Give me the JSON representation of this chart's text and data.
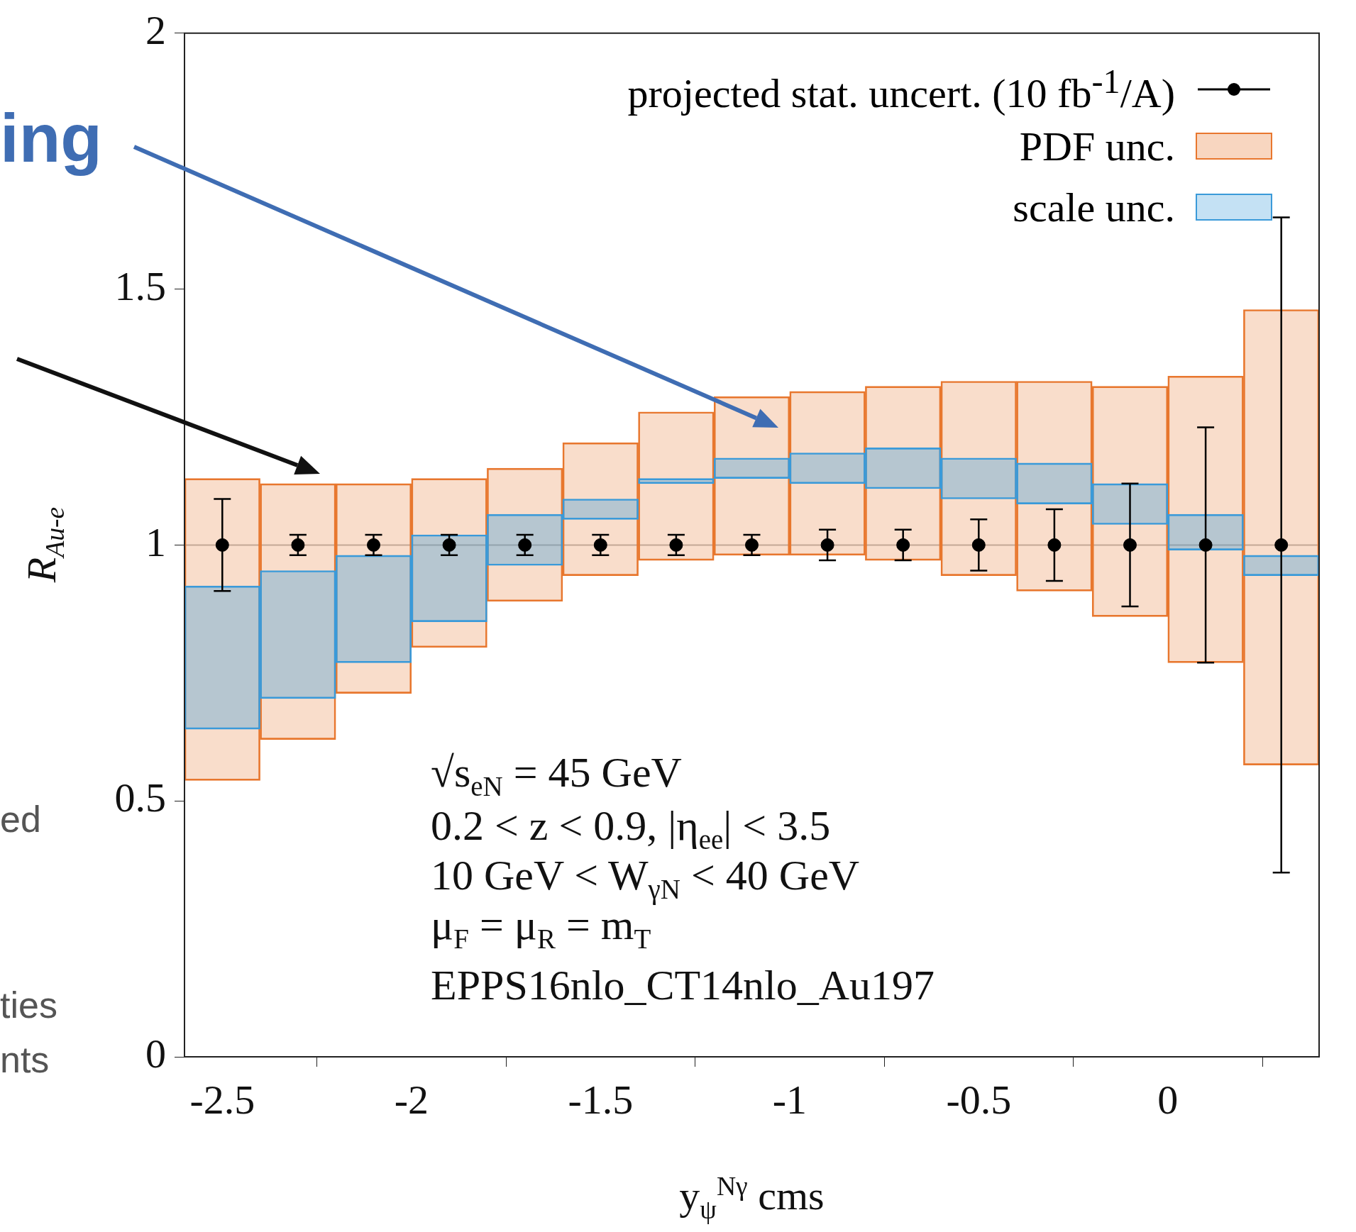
{
  "chart_data": {
    "type": "bar",
    "xlabel": "y$_{ψ}$$^{Nγ}$ cms",
    "ylabel": "R$_{Au-e}$",
    "x": [
      -2.5,
      -2.3,
      -2.1,
      -1.9,
      -1.7,
      -1.5,
      -1.3,
      -1.1,
      -0.9,
      -0.7,
      -0.5,
      -0.3,
      -0.1,
      0.1,
      0.3
    ],
    "xlim": [
      -2.6,
      0.4
    ],
    "ylim": [
      0,
      2
    ],
    "xticks": [
      -2.5,
      -2,
      -1.5,
      -1,
      -0.5,
      0
    ],
    "yticks": [
      0,
      0.5,
      1,
      1.5,
      2
    ],
    "grid": false,
    "legend": "top right",
    "ref_lines": [
      {
        "axis": "y",
        "value": 1,
        "color": "#b8b8b8"
      }
    ],
    "series": [
      {
        "name": "projected stat. uncert. (10 fb$^{-1}$/A)",
        "type": "scatter",
        "color": "#000000",
        "marker": "circle",
        "values": [
          1,
          1,
          1,
          1,
          1,
          1,
          1,
          1,
          1,
          1,
          1,
          1,
          1,
          1,
          1
        ],
        "errors": [
          0.09,
          0.02,
          0.02,
          0.02,
          0.02,
          0.02,
          0.02,
          0.02,
          0.03,
          0.03,
          0.05,
          0.07,
          0.12,
          0.23,
          0.64
        ]
      },
      {
        "name": "PDF unc.",
        "type": "bar",
        "color": "#e8772e",
        "base": [
          0.54,
          0.62,
          0.71,
          0.8,
          0.89,
          0.94,
          0.97,
          0.98,
          0.98,
          0.97,
          0.94,
          0.91,
          0.86,
          0.77,
          0.57
        ],
        "values": [
          0.59,
          0.5,
          0.41,
          0.33,
          0.26,
          0.26,
          0.29,
          0.31,
          0.32,
          0.34,
          0.38,
          0.41,
          0.45,
          0.56,
          0.89
        ]
      },
      {
        "name": "scale unc.",
        "type": "bar",
        "color": "#3a9ad9",
        "base": [
          0.64,
          0.7,
          0.77,
          0.85,
          0.96,
          1.05,
          1.12,
          1.13,
          1.12,
          1.11,
          1.09,
          1.08,
          1.04,
          0.99,
          0.94
        ],
        "values": [
          0.28,
          0.25,
          0.21,
          0.17,
          0.1,
          0.04,
          0.01,
          0.04,
          0.06,
          0.08,
          0.08,
          0.08,
          0.08,
          0.07,
          0.04
        ]
      }
    ],
    "annotations": [
      "√s$_{eN}$ = 45 GeV",
      "0.2 < z < 0.9, |η$_{ee}$| < 3.5",
      "10 GeV < W$_{γN}$ < 40 GeV",
      "μ$_{F}$ = μ$_{R}$ = m$_{T}$",
      "EPPS16nlo_CT14nlo_Au197",
      "ing",
      "ed",
      "ties",
      "nts"
    ]
  }
}
